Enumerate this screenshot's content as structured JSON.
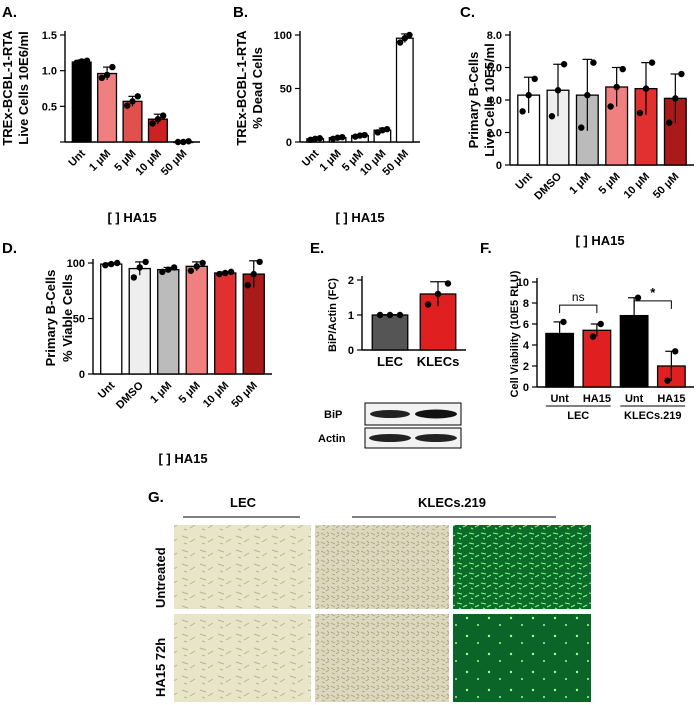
{
  "panels": {
    "A": "A.",
    "B": "B.",
    "C": "C.",
    "D": "D.",
    "E": "E.",
    "F": "F.",
    "G": "G."
  },
  "chart_data": [
    {
      "id": "A",
      "type": "bar",
      "categories": [
        "Unt",
        "1 μM",
        "5 μM",
        "10 μM",
        "50 μM"
      ],
      "values": [
        1.12,
        0.96,
        0.57,
        0.32,
        0.0
      ],
      "errors": [
        0.03,
        0.09,
        0.07,
        0.07,
        0.01
      ],
      "points": [
        [
          1.11,
          1.13,
          1.14
        ],
        [
          0.9,
          0.94,
          1.05
        ],
        [
          0.51,
          0.57,
          0.64
        ],
        [
          0.26,
          0.32,
          0.37
        ],
        [
          0.0,
          0.0,
          0.01
        ]
      ],
      "colors": [
        "#000000",
        "#f08080",
        "#e0504d",
        "#cc2222",
        "#ffffff"
      ],
      "ylabel": [
        "TREx-BCBL-1-RTA",
        "Live Cells 10E6/ml"
      ],
      "xlabel": "[ ] HA15",
      "ylim": [
        0,
        1.5
      ],
      "yticks": [
        0,
        0.5,
        1.0,
        1.5
      ],
      "ytick_labels": [
        "",
        "0.5",
        "1.0",
        "1.5"
      ]
    },
    {
      "id": "B",
      "type": "bar",
      "categories": [
        "Unt",
        "1 μM",
        "5 μM",
        "10 μM",
        "50 μM"
      ],
      "values": [
        3,
        4,
        6,
        11,
        97
      ],
      "errors": [
        1,
        1,
        1,
        2,
        4
      ],
      "points": [
        [
          2,
          3,
          3.5
        ],
        [
          3,
          4,
          4.5
        ],
        [
          5,
          6,
          6.5
        ],
        [
          9,
          11,
          12
        ],
        [
          93,
          97,
          100
        ]
      ],
      "colors": [
        "#ffffff",
        "#ffffff",
        "#ffffff",
        "#ffffff",
        "#ffffff"
      ],
      "ylabel": [
        "TREx-BCBL-1-RTA",
        "% Dead Cells"
      ],
      "xlabel": "[ ] HA15",
      "ylim": [
        0,
        100
      ],
      "yticks": [
        0,
        50,
        100
      ],
      "ytick_labels": [
        "0",
        "50",
        "100"
      ]
    },
    {
      "id": "C",
      "type": "bar",
      "categories": [
        "Unt",
        "DMSO",
        "1 μM",
        "5 μM",
        "10 μM",
        "50 μM"
      ],
      "values": [
        4.3,
        4.6,
        4.3,
        4.8,
        4.7,
        4.1
      ],
      "errors": [
        1.1,
        1.6,
        2.2,
        1.2,
        1.6,
        1.5
      ],
      "points": [
        [
          3.3,
          4.3,
          5.3
        ],
        [
          3.0,
          4.6,
          6.2
        ],
        [
          2.3,
          4.3,
          6.3
        ],
        [
          3.6,
          4.8,
          5.9
        ],
        [
          3.2,
          4.7,
          6.3
        ],
        [
          2.6,
          4.1,
          5.6
        ]
      ],
      "colors": [
        "#ffffff",
        "#eeeeee",
        "#bbbbbb",
        "#f08080",
        "#e03030",
        "#aa1a1a"
      ],
      "ylabel": [
        "Primary B-Cells",
        "Live Cells 10E5/ml"
      ],
      "xlabel": "[ ] HA15",
      "ylim": [
        0,
        8.0
      ],
      "yticks": [
        0,
        2,
        4,
        6,
        8
      ],
      "ytick_labels": [
        "0",
        "2.0",
        "4.0",
        "6.0",
        "8.0"
      ]
    },
    {
      "id": "D",
      "type": "bar",
      "categories": [
        "Unt",
        "DMSO",
        "1 μM",
        "5 μM",
        "10 μM",
        "50 μM"
      ],
      "values": [
        99,
        95,
        94,
        97,
        91,
        90
      ],
      "errors": [
        1,
        6,
        2,
        4,
        1,
        12
      ],
      "points": [
        [
          98,
          99,
          100
        ],
        [
          87,
          96,
          101
        ],
        [
          92,
          94,
          96
        ],
        [
          93,
          97,
          100
        ],
        [
          90,
          91,
          92
        ],
        [
          80,
          90,
          101
        ]
      ],
      "colors": [
        "#ffffff",
        "#eeeeee",
        "#bbbbbb",
        "#f08080",
        "#e03030",
        "#aa1a1a"
      ],
      "ylabel": [
        "Primary B-Cells",
        "% Viable Cells"
      ],
      "xlabel": "[ ] HA15",
      "ylim": [
        0,
        100
      ],
      "yticks": [
        0,
        50,
        100
      ],
      "ytick_labels": [
        "0",
        "50",
        "100"
      ]
    },
    {
      "id": "E",
      "type": "bar",
      "categories": [
        "LEC",
        "KLECs"
      ],
      "values": [
        1.0,
        1.6
      ],
      "errors": [
        0.01,
        0.35
      ],
      "points": [
        [
          1.0,
          1.0,
          1.0
        ],
        [
          1.3,
          1.6,
          1.9
        ]
      ],
      "colors": [
        "#555555",
        "#e02020"
      ],
      "ylabel": [
        "BiP/Actin (FC)"
      ],
      "xlabel": "",
      "ylim": [
        0,
        2
      ],
      "yticks": [
        0,
        1,
        2
      ],
      "ytick_labels": [
        "0",
        "1",
        "2"
      ],
      "blot_labels": [
        "BiP",
        "Actin"
      ]
    },
    {
      "id": "F",
      "type": "bar",
      "categories": [
        "Unt",
        "HA15",
        "Unt",
        "HA15"
      ],
      "groups": [
        "LEC",
        "KLECs.219"
      ],
      "values": [
        5.1,
        5.4,
        6.8,
        2.0
      ],
      "errors": [
        1.1,
        0.6,
        1.7,
        1.4
      ],
      "points": [
        [
          4.0,
          6.2
        ],
        [
          4.8,
          6.0
        ],
        [
          5.1,
          8.5
        ],
        [
          0.6,
          3.4
        ]
      ],
      "colors": [
        "#000000",
        "#e02020",
        "#000000",
        "#e02020"
      ],
      "ylabel": [
        "Cell Viability (10E5 RLU)"
      ],
      "xlabel": "",
      "ylim": [
        0,
        10
      ],
      "yticks": [
        0,
        2,
        4,
        6,
        8,
        10
      ],
      "ytick_labels": [
        "0",
        "2",
        "4",
        "6",
        "8",
        "10"
      ],
      "annotations": [
        "ns",
        "*"
      ]
    }
  ],
  "micrograph_panel": {
    "groups": [
      "LEC",
      "KLECs.219"
    ],
    "rows": [
      "Untreated",
      "HA15 72h"
    ]
  }
}
